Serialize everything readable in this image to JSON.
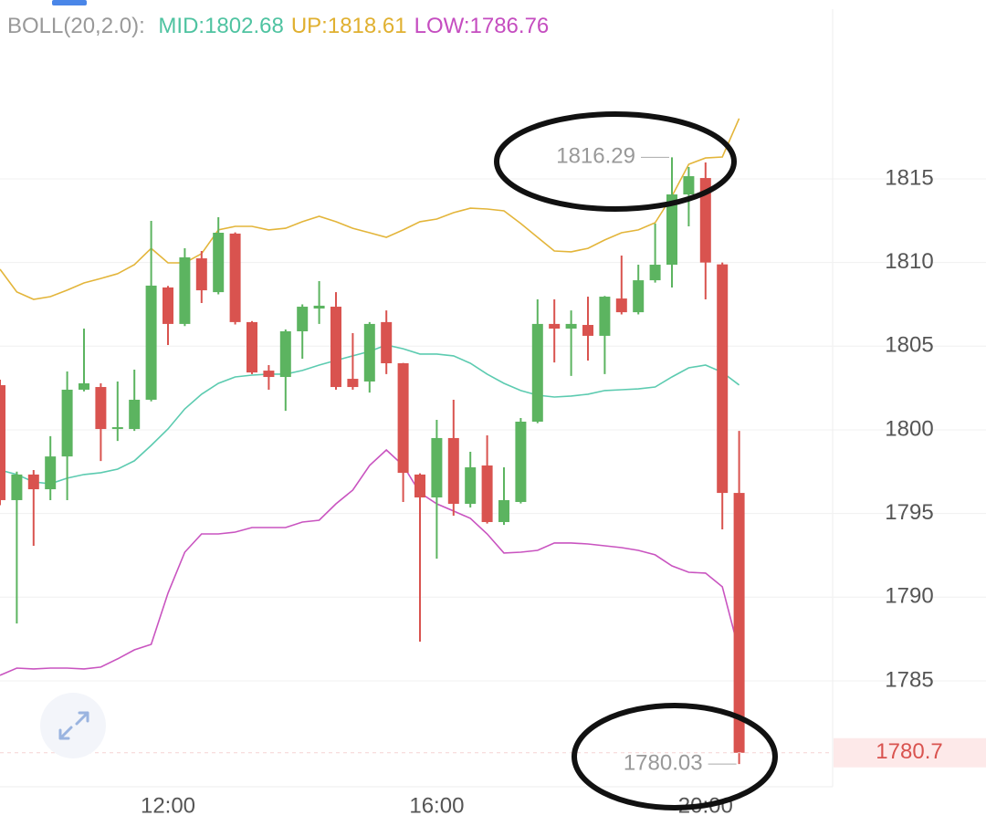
{
  "chart_data": {
    "type": "candlestick",
    "indicator": "BOLL(20,2.0):",
    "categories": [
      null,
      null,
      null,
      null,
      null,
      null,
      null,
      null,
      null,
      null,
      "12:00",
      null,
      null,
      null,
      null,
      null,
      null,
      null,
      null,
      null,
      null,
      null,
      null,
      null,
      null,
      null,
      "16:00",
      null,
      null,
      null,
      null,
      null,
      null,
      null,
      null,
      null,
      null,
      null,
      null,
      null,
      null,
      null,
      "20:00",
      null,
      null
    ],
    "open": [
      1802.67,
      1795.8,
      1797.33,
      1796.45,
      1798.41,
      1802.4,
      1802.56,
      1800.05,
      1800.05,
      1801.8,
      1808.51,
      1806.33,
      1810.25,
      1808.23,
      1811.73,
      1806.44,
      1803.54,
      1803.16,
      1805.89,
      1807.25,
      1807.36,
      1803.05,
      1802.89,
      1806.44,
      1803.98,
      1797.33,
      1795.96,
      1799.51,
      1795.58,
      1797.87,
      1794.49,
      1795.69,
      1800.49,
      1806.33,
      1806.05,
      1806.27,
      1805.62,
      1807.85,
      1807.03,
      1808.94,
      1809.87,
      1814.07,
      1815.05,
      1809.89,
      1796.23
    ],
    "high": [
      1803.0,
      1797.5,
      1797.6,
      1799.62,
      1803.49,
      1806.05,
      1802.78,
      1802.89,
      1803.6,
      1812.49,
      1808.6,
      1810.85,
      1810.69,
      1812.71,
      1811.8,
      1806.5,
      1803.87,
      1806.0,
      1807.5,
      1808.89,
      1808.23,
      1805.78,
      1806.44,
      1807.14,
      1804.0,
      1797.4,
      1800.6,
      1801.8,
      1798.69,
      1799.67,
      1797.76,
      1800.71,
      1807.8,
      1807.8,
      1807.14,
      1807.96,
      1808.0,
      1810.42,
      1809.87,
      1812.33,
      1816.29,
      1815.71,
      1815.98,
      1810.0,
      1799.94
    ],
    "low": [
      1795.5,
      1788.43,
      1793.07,
      1795.8,
      1795.8,
      1802.3,
      1798.14,
      1799.34,
      1799.94,
      1801.7,
      1805.07,
      1806.2,
      1807.58,
      1808.1,
      1806.3,
      1803.33,
      1802.4,
      1801.14,
      1804.25,
      1806.33,
      1802.4,
      1802.4,
      1802.23,
      1803.33,
      1795.69,
      1787.34,
      1792.3,
      1794.87,
      1795.36,
      1794.4,
      1794.32,
      1795.6,
      1800.4,
      1804.03,
      1803.22,
      1804.14,
      1803.33,
      1806.9,
      1806.9,
      1808.8,
      1808.51,
      1812.16,
      1807.8,
      1794.05,
      1780.03
    ],
    "close": [
      1795.8,
      1797.33,
      1796.45,
      1798.41,
      1802.4,
      1802.78,
      1800.05,
      1800.16,
      1801.8,
      1808.62,
      1806.33,
      1810.31,
      1808.34,
      1811.78,
      1806.44,
      1803.43,
      1803.16,
      1805.89,
      1807.36,
      1807.42,
      1802.56,
      1802.56,
      1806.33,
      1803.98,
      1797.43,
      1795.96,
      1799.51,
      1795.58,
      1797.76,
      1794.49,
      1795.8,
      1800.49,
      1806.33,
      1806.05,
      1806.33,
      1805.62,
      1807.96,
      1807.03,
      1808.94,
      1809.87,
      1814.07,
      1815.16,
      1810.0,
      1796.23,
      1780.7
    ],
    "up_color": "#5cb460",
    "down_color": "#d9534f",
    "series": [
      {
        "name": "MID",
        "label": "MID:1802.68",
        "color": "#5ccbb0",
        "text_color": "#4fc3a1",
        "values": [
          1797.6,
          1797.33,
          1796.89,
          1796.78,
          1797.11,
          1797.33,
          1797.44,
          1797.65,
          1798.15,
          1799.07,
          1800.05,
          1801.25,
          1802.13,
          1802.78,
          1803.16,
          1803.27,
          1803.33,
          1803.33,
          1803.55,
          1803.87,
          1804.15,
          1804.42,
          1804.69,
          1805.07,
          1804.85,
          1804.53,
          1804.53,
          1804.42,
          1803.98,
          1803.33,
          1802.78,
          1802.35,
          1802.07,
          1801.96,
          1802.02,
          1802.13,
          1802.35,
          1802.4,
          1802.45,
          1802.56,
          1803.16,
          1803.71,
          1803.87,
          1803.44,
          1802.68
        ]
      },
      {
        "name": "UP",
        "label": "UP:1818.61",
        "color": "#e3b53a",
        "text_color": "#e0b030",
        "values": [
          1809.6,
          1808.24,
          1807.8,
          1807.96,
          1808.35,
          1808.78,
          1809.05,
          1809.33,
          1809.87,
          1810.85,
          1809.98,
          1809.98,
          1810.53,
          1811.95,
          1812.16,
          1812.16,
          1811.95,
          1812.05,
          1812.44,
          1812.76,
          1812.44,
          1812.05,
          1811.78,
          1811.51,
          1811.95,
          1812.44,
          1812.6,
          1812.98,
          1813.25,
          1813.2,
          1813.09,
          1812.33,
          1811.51,
          1810.69,
          1810.64,
          1810.85,
          1811.35,
          1811.78,
          1811.95,
          1812.38,
          1813.96,
          1815.87,
          1816.25,
          1816.31,
          1818.61
        ]
      },
      {
        "name": "LOW",
        "label": "LOW:1786.76",
        "color": "#c954c0",
        "text_color": "#c54dc0",
        "values": [
          1785.33,
          1785.76,
          1785.71,
          1785.76,
          1785.76,
          1785.71,
          1785.82,
          1786.31,
          1786.85,
          1787.18,
          1790.24,
          1792.69,
          1793.78,
          1793.78,
          1793.89,
          1794.16,
          1794.16,
          1794.16,
          1794.49,
          1794.6,
          1795.58,
          1796.4,
          1797.87,
          1798.8,
          1797.87,
          1796.24,
          1795.58,
          1795.15,
          1794.71,
          1793.78,
          1792.64,
          1792.69,
          1792.8,
          1793.24,
          1793.24,
          1793.18,
          1793.07,
          1792.96,
          1792.8,
          1792.53,
          1791.87,
          1791.49,
          1791.44,
          1790.62,
          1786.76
        ]
      }
    ],
    "ylim": [
      1778.67,
      1825.69
    ],
    "yticks": [
      1785,
      1790,
      1795,
      1800,
      1805,
      1810,
      1815
    ],
    "grid": true
  }
}
